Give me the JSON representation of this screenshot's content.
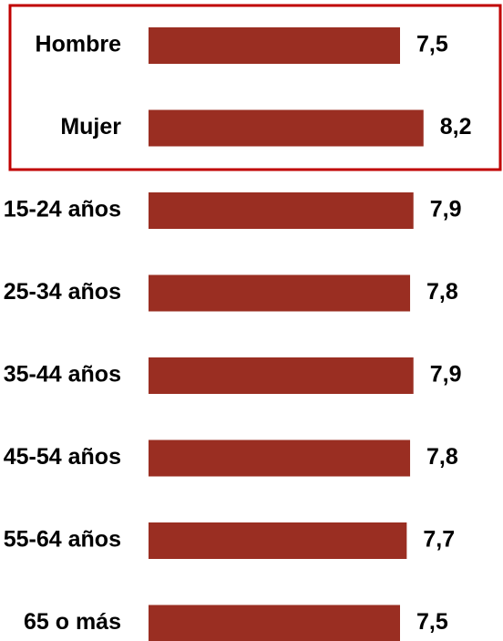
{
  "chart_data": {
    "type": "hbar",
    "categories": [
      "Hombre",
      "Mujer",
      "15-24 años",
      "25-34 años",
      "35-44 años",
      "45-54 años",
      "55-64 años",
      "65 o más"
    ],
    "values": [
      7.5,
      8.2,
      7.9,
      7.8,
      7.9,
      7.8,
      7.7,
      7.5
    ],
    "value_labels": [
      "7,5",
      "8,2",
      "7,9",
      "7,8",
      "7,9",
      "7,8",
      "7,7",
      "7,5"
    ],
    "color": "#9a2e22",
    "highlight_color": "#c00000"
  }
}
